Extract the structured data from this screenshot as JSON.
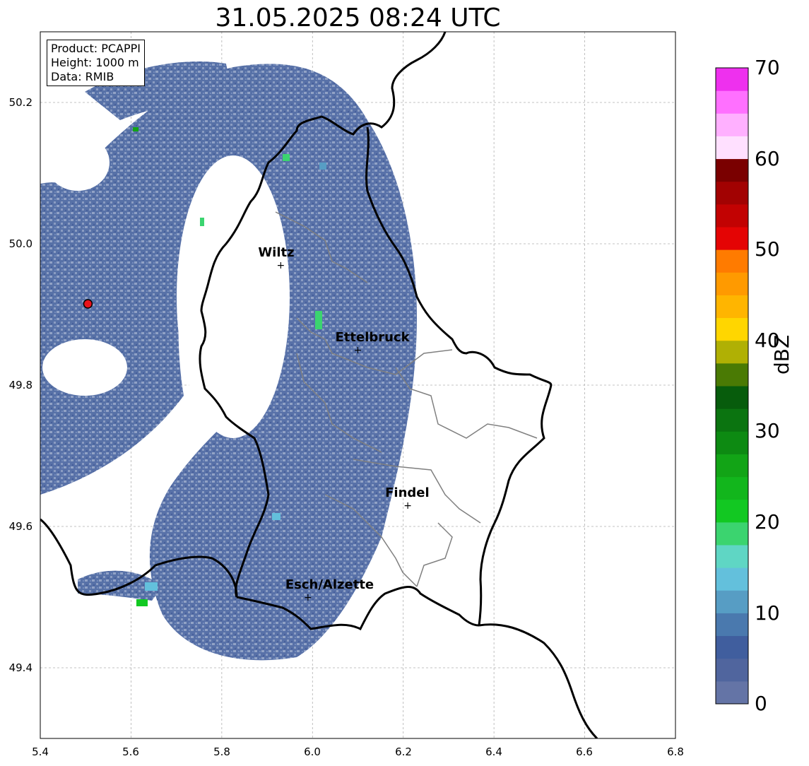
{
  "title": "31.05.2025 08:24 UTC",
  "info": {
    "product": "Product: PCAPPI",
    "height": "Height: 1000 m",
    "data": "Data: RMIB"
  },
  "axes": {
    "x_ticks": [
      "5.4",
      "5.6",
      "5.8",
      "6.0",
      "6.2",
      "6.4",
      "6.6",
      "6.8"
    ],
    "y_ticks": [
      "50.2",
      "50.0",
      "49.8",
      "49.6",
      "49.4"
    ],
    "xlim": [
      5.4,
      6.8
    ],
    "ylim": [
      49.3,
      50.3
    ],
    "grid": true
  },
  "cities": [
    {
      "name": "Wiltz",
      "lon": 5.93,
      "lat": 49.97
    },
    {
      "name": "Ettelbruck",
      "lon": 6.1,
      "lat": 49.85
    },
    {
      "name": "Findel",
      "lon": 6.21,
      "lat": 49.63
    },
    {
      "name": "Esch/Alzette",
      "lon": 5.99,
      "lat": 49.5
    }
  ],
  "radar_site": {
    "lon": 5.505,
    "lat": 49.915,
    "color": "#e8131c"
  },
  "colorbar": {
    "label": "dBZ",
    "ticks": [
      "70",
      "60",
      "50",
      "40",
      "30",
      "20",
      "10",
      "0"
    ],
    "colors": [
      "#6474a6",
      "#50659e",
      "#405e9e",
      "#4a79ae",
      "#579dc4",
      "#63c0dc",
      "#5fd6c4",
      "#3bd46f",
      "#12c822",
      "#12b61c",
      "#12a416",
      "#0d8a12",
      "#0b7410",
      "#075c0c",
      "#4a7a04",
      "#b0b004",
      "#ffd600",
      "#ffb500",
      "#ff9a00",
      "#ff7b00",
      "#e40404",
      "#c20202",
      "#a20202",
      "#7a0000",
      "#ffe0ff",
      "#ffb0ff",
      "#ff70ff",
      "#ee30ee"
    ]
  },
  "legend_colors": {
    "echo": "#4f6aa3",
    "border": "#000000",
    "canton": "#808080"
  }
}
